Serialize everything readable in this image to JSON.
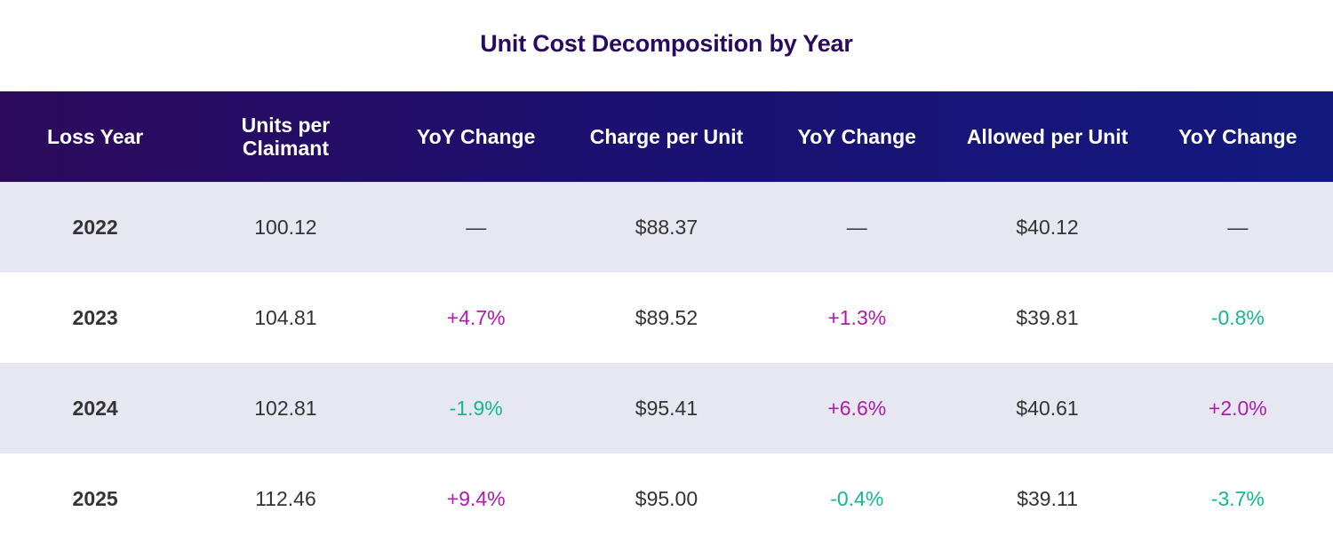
{
  "title": "Unit Cost Decomposition by Year",
  "colors": {
    "title": "#2a0a5e",
    "header_gradient_start": "#2d0a5c",
    "header_gradient_end": "#121a7e",
    "increase": "#b01ab0",
    "decrease": "#12b88f",
    "shaded_row": "#e7e7f1"
  },
  "chart_data": {
    "type": "table",
    "title": "Unit Cost Decomposition by Year",
    "columns": [
      "Loss Year",
      "Units per Claimant",
      "YoY Change",
      "Charge per Unit",
      "YoY Change",
      "Allowed per Unit",
      "YoY Change"
    ],
    "rows": [
      [
        "2022",
        "100.12",
        "—",
        "$88.37",
        "—",
        "$40.12",
        "—"
      ],
      [
        "2023",
        "104.81",
        "+4.7%",
        "$89.52",
        "+1.3%",
        "$39.81",
        "-0.8%"
      ],
      [
        "2024",
        "102.81",
        "-1.9%",
        "$95.41",
        "+6.6%",
        "$40.61",
        "+2.0%"
      ],
      [
        "2025",
        "112.46",
        "+9.4%",
        "$95.00",
        "-0.4%",
        "$39.11",
        "-3.7%"
      ]
    ]
  }
}
